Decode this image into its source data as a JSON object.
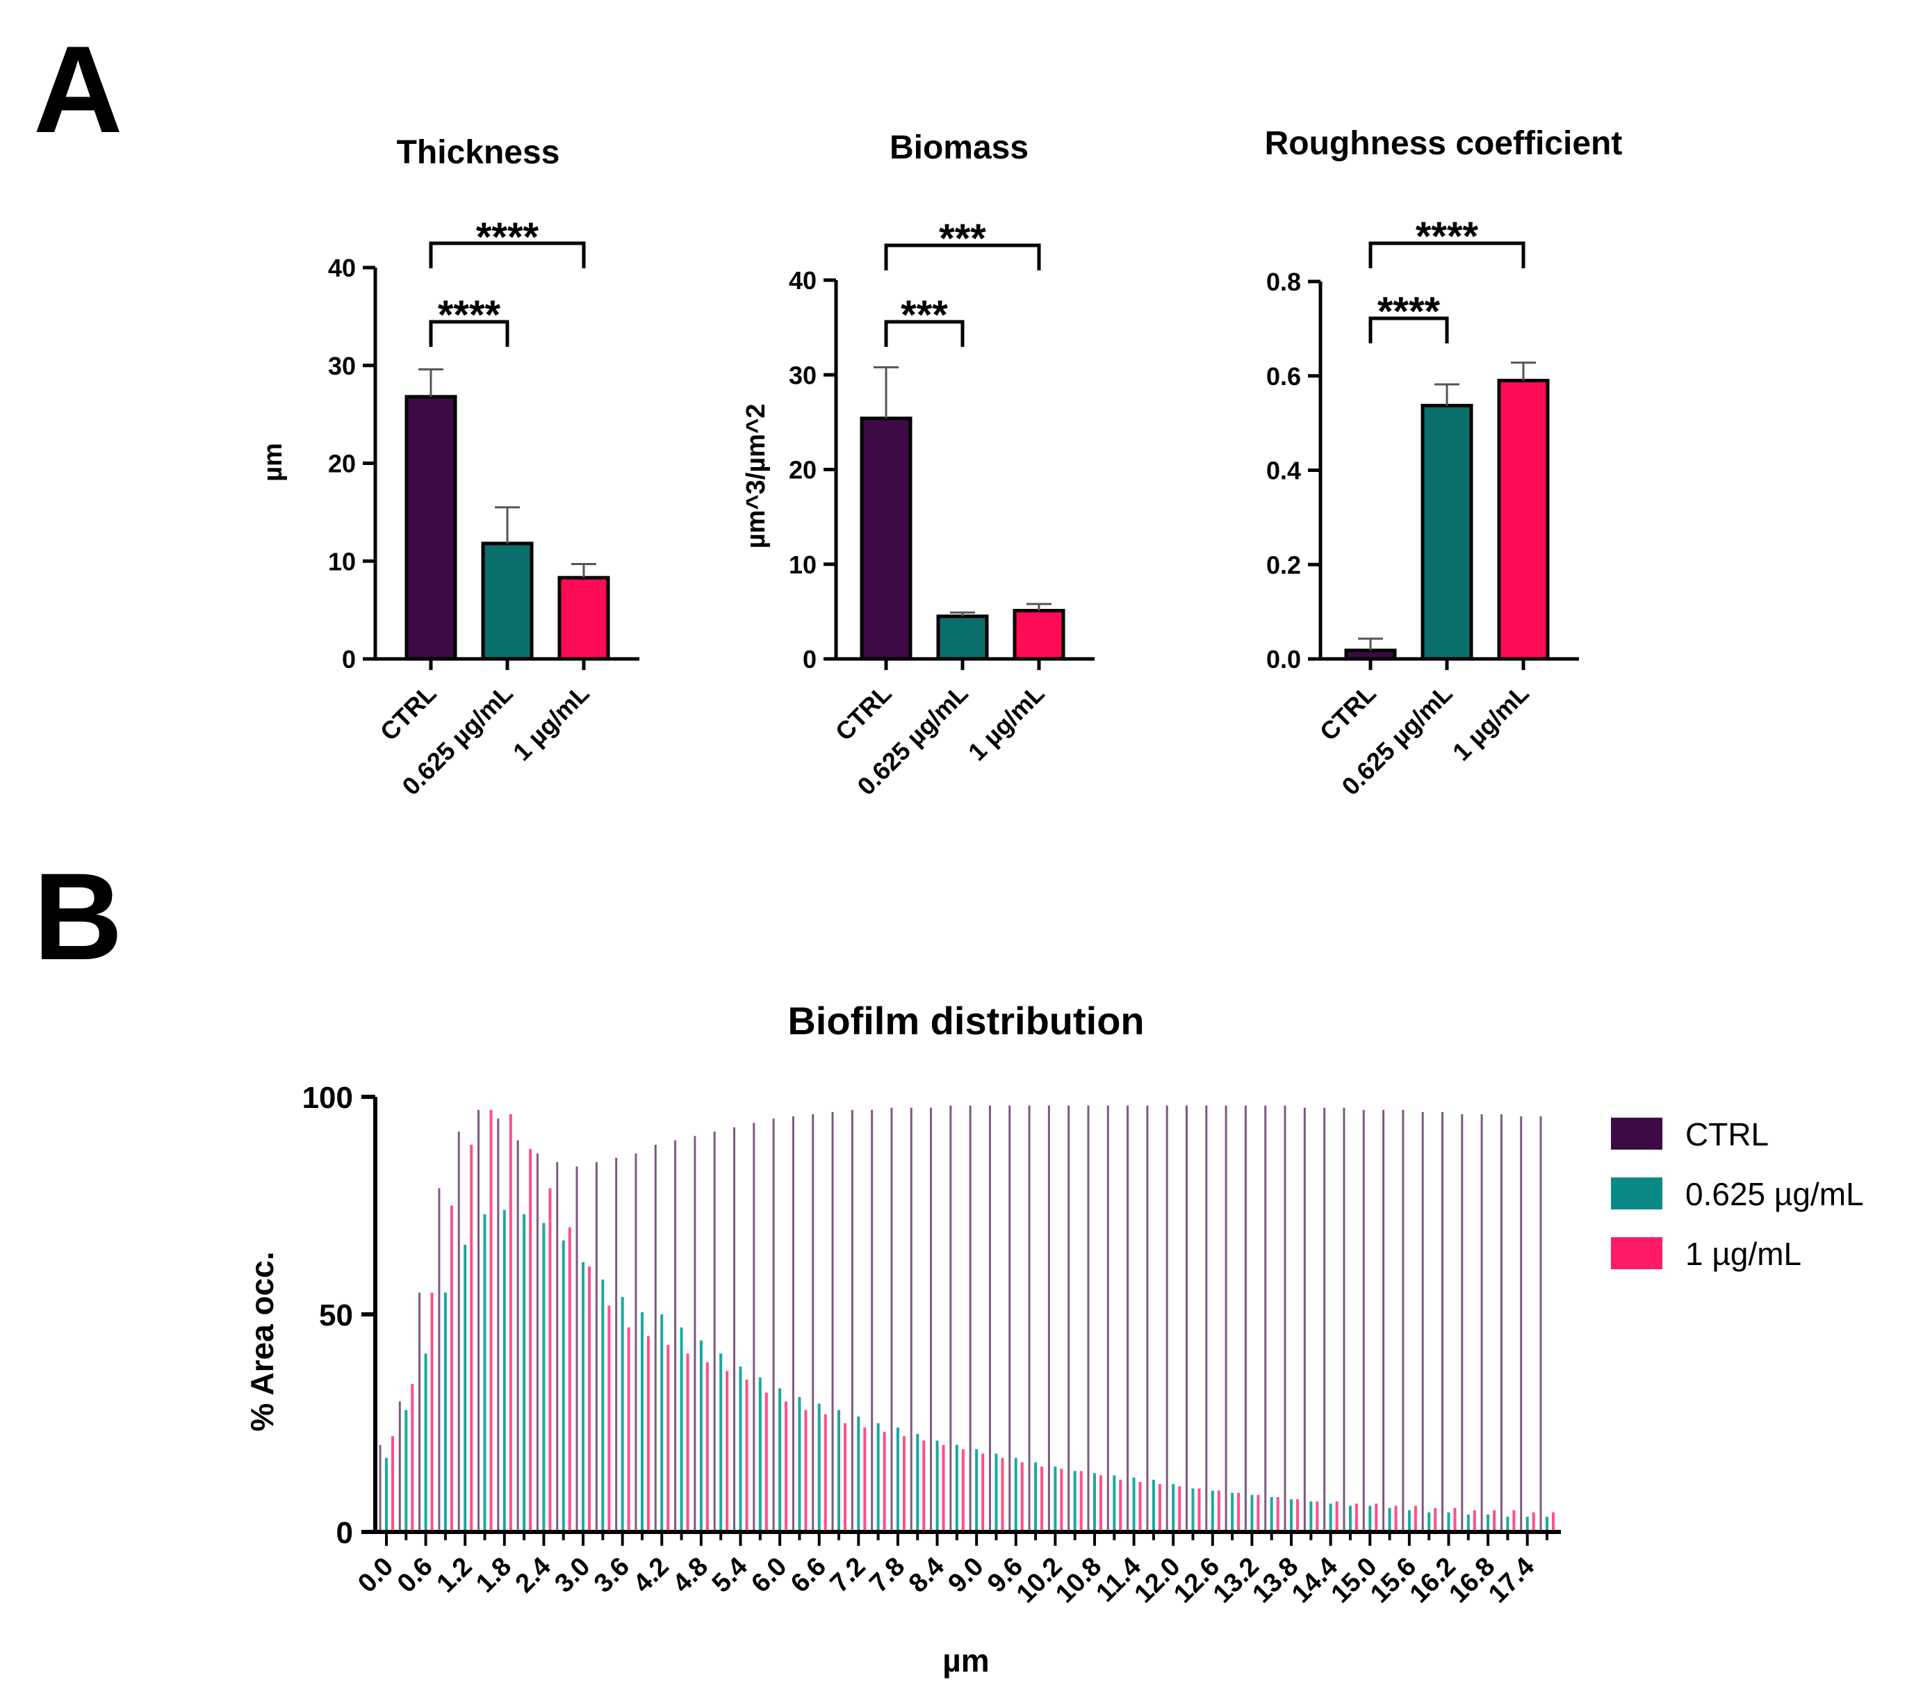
{
  "colors": {
    "ctrl": "#3d0a45",
    "mid": "#0a6e6a",
    "high": "#ff0a55",
    "ctrl_thin": "#7d5a80",
    "mid_thin": "#1aa8a2",
    "high_thin": "#ff4f8a"
  },
  "panel_labels": {
    "a": "A",
    "b": "B"
  },
  "chart_data": [
    {
      "type": "bar",
      "title": "Thickness",
      "xlabel": "",
      "ylabel": "µm",
      "ylim": [
        0,
        40
      ],
      "yticks": [
        "0",
        "10",
        "20",
        "30",
        "40"
      ],
      "categories": [
        "CTRL",
        "0.625 µg/mL",
        "1 µg/mL"
      ],
      "values": [
        26.8,
        11.8,
        8.3
      ],
      "errors": [
        2.8,
        3.7,
        1.4
      ],
      "significance": [
        {
          "from": 0,
          "to": 1,
          "label": "****"
        },
        {
          "from": 0,
          "to": 2,
          "label": "****"
        }
      ]
    },
    {
      "type": "bar",
      "title": "Biomass",
      "xlabel": "",
      "ylabel": "µm^3/µm^2",
      "ylim": [
        0,
        40
      ],
      "yticks": [
        "0",
        "10",
        "20",
        "30",
        "40"
      ],
      "categories": [
        "CTRL",
        "0.625 µg/mL",
        "1 µg/mL"
      ],
      "values": [
        25.4,
        4.5,
        5.1
      ],
      "errors": [
        5.4,
        0.4,
        0.7
      ],
      "significance": [
        {
          "from": 0,
          "to": 1,
          "label": "***"
        },
        {
          "from": 0,
          "to": 2,
          "label": "***"
        }
      ]
    },
    {
      "type": "bar",
      "title": "Roughness coefficient",
      "xlabel": "",
      "ylabel": "",
      "ylim": [
        0,
        0.8
      ],
      "yticks": [
        "0.0",
        "0.2",
        "0.4",
        "0.6",
        "0.8"
      ],
      "categories": [
        "CTRL",
        "0.625 µg/mL",
        "1 µg/mL"
      ],
      "values": [
        0.018,
        0.537,
        0.59
      ],
      "errors": [
        0.025,
        0.045,
        0.038
      ],
      "significance": [
        {
          "from": 0,
          "to": 1,
          "label": "****"
        },
        {
          "from": 0,
          "to": 2,
          "label": "****"
        }
      ]
    },
    {
      "type": "bar",
      "title": "Biofilm distribution",
      "xlabel": "µm",
      "ylabel": "% Area occ.",
      "ylim": [
        0,
        100
      ],
      "yticks": [
        "0",
        "50",
        "100"
      ],
      "legend_position": "right",
      "x_start": 0.0,
      "x_step": 0.3,
      "tick_labels": [
        "0.0",
        "0.6",
        "1.2",
        "1.8",
        "2.4",
        "3.0",
        "3.6",
        "4.2",
        "4.8",
        "5.4",
        "6.0",
        "6.6",
        "7.2",
        "7.8",
        "8.4",
        "9.0",
        "9.6",
        "10.2",
        "10.8",
        "11.4",
        "12.0",
        "12.6",
        "13.2",
        "13.8",
        "14.4",
        "15.0",
        "15.6",
        "16.2",
        "16.8",
        "17.4"
      ],
      "series": [
        {
          "name": "CTRL",
          "values": [
            20,
            30,
            55,
            79,
            92,
            97,
            95,
            90,
            87,
            85,
            84,
            85,
            86,
            87,
            89,
            90,
            91,
            92,
            93,
            94,
            95,
            95.5,
            96,
            96.5,
            97,
            97,
            97.5,
            97.5,
            97.5,
            98,
            98,
            98,
            98,
            98,
            98,
            98,
            98,
            98,
            98,
            98,
            98,
            98,
            98,
            98,
            98,
            98,
            98,
            97.5,
            97.5,
            97.5,
            97,
            97,
            97,
            96.5,
            96.5,
            96,
            96,
            96,
            95.5,
            95.5
          ]
        },
        {
          "name": "0.625 µg/mL",
          "values": [
            17,
            28,
            41,
            55,
            66,
            73,
            74,
            73,
            71,
            67,
            62,
            58,
            54,
            50.5,
            50,
            47,
            44,
            41,
            38,
            35.5,
            33,
            31,
            29.5,
            28,
            26.5,
            25,
            24,
            22.5,
            21,
            20,
            19,
            18,
            17,
            16,
            15,
            14,
            13.5,
            13,
            12.5,
            12,
            11,
            10,
            9.5,
            9,
            8.5,
            8,
            7.5,
            7,
            6.5,
            6,
            6,
            5.5,
            5,
            4.5,
            4.5,
            4,
            4,
            3.5,
            3.5,
            3.5
          ]
        },
        {
          "name": "1 µg/mL",
          "values": [
            22,
            34,
            55,
            75,
            89,
            97,
            96,
            88,
            79,
            70,
            61,
            52,
            47,
            45,
            43,
            41,
            39,
            37,
            35,
            32,
            30,
            28,
            27,
            25,
            24,
            23,
            22,
            21,
            20,
            19,
            18,
            17,
            16,
            15,
            14.5,
            14,
            13,
            12,
            11.5,
            11,
            10.5,
            10,
            9.5,
            9,
            8.5,
            8,
            7.5,
            7,
            7,
            6.5,
            6.5,
            6,
            6,
            5.5,
            5.5,
            5,
            5,
            5,
            4.5,
            4.5
          ]
        }
      ]
    }
  ]
}
